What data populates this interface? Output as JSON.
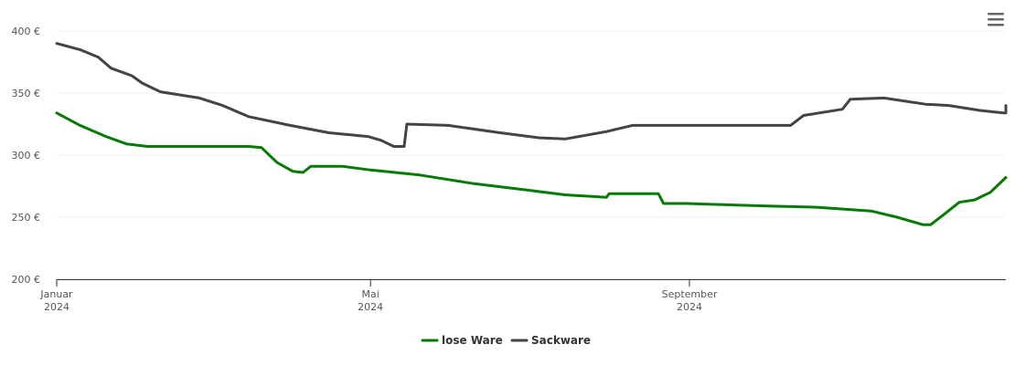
{
  "chart_data": {
    "type": "line",
    "title": "",
    "xlabel": "",
    "ylabel": "",
    "ylim": [
      200,
      400
    ],
    "y_ticks": [
      "200 €",
      "250 €",
      "300 €",
      "350 €",
      "400 €"
    ],
    "y_tick_values": [
      200,
      250,
      300,
      350,
      400
    ],
    "x_range": [
      "2024-01-01",
      "2025-01-01"
    ],
    "x_ticks": [
      {
        "date": "2024-01-01",
        "month": "Januar",
        "year": "2024"
      },
      {
        "date": "2024-05-01",
        "month": "Mai",
        "year": "2024"
      },
      {
        "date": "2024-09-01",
        "month": "September",
        "year": "2024"
      }
    ],
    "grid": "horizontal",
    "legend_position": "bottom-center",
    "series": [
      {
        "name": "lose Ware",
        "color": "#077a07",
        "points": [
          [
            "2024-01-01",
            334
          ],
          [
            "2024-01-10",
            324
          ],
          [
            "2024-01-20",
            315
          ],
          [
            "2024-01-28",
            309
          ],
          [
            "2024-02-05",
            307
          ],
          [
            "2024-02-15",
            307
          ],
          [
            "2024-03-01",
            307
          ],
          [
            "2024-03-15",
            307
          ],
          [
            "2024-03-20",
            306
          ],
          [
            "2024-03-26",
            294
          ],
          [
            "2024-04-01",
            287
          ],
          [
            "2024-04-05",
            286
          ],
          [
            "2024-04-08",
            291
          ],
          [
            "2024-04-20",
            291
          ],
          [
            "2024-05-01",
            288
          ],
          [
            "2024-05-20",
            284
          ],
          [
            "2024-06-10",
            277
          ],
          [
            "2024-06-30",
            272
          ],
          [
            "2024-07-15",
            268
          ],
          [
            "2024-07-31",
            266
          ],
          [
            "2024-08-01",
            269
          ],
          [
            "2024-08-20",
            269
          ],
          [
            "2024-08-22",
            261
          ],
          [
            "2024-08-31",
            261
          ],
          [
            "2024-09-15",
            260
          ],
          [
            "2024-10-01",
            259
          ],
          [
            "2024-10-20",
            258
          ],
          [
            "2024-11-10",
            255
          ],
          [
            "2024-11-20",
            250
          ],
          [
            "2024-11-30",
            244
          ],
          [
            "2024-12-03",
            244
          ],
          [
            "2024-12-08",
            252
          ],
          [
            "2024-12-14",
            262
          ],
          [
            "2024-12-20",
            264
          ],
          [
            "2024-12-26",
            270
          ],
          [
            "2025-01-01",
            282
          ]
        ]
      },
      {
        "name": "Sackware",
        "color": "#434348",
        "points": [
          [
            "2024-01-01",
            390
          ],
          [
            "2024-01-10",
            385
          ],
          [
            "2024-01-17",
            379
          ],
          [
            "2024-01-22",
            370
          ],
          [
            "2024-01-30",
            364
          ],
          [
            "2024-02-03",
            358
          ],
          [
            "2024-02-10",
            351
          ],
          [
            "2024-02-25",
            346
          ],
          [
            "2024-03-05",
            340
          ],
          [
            "2024-03-15",
            331
          ],
          [
            "2024-03-31",
            324
          ],
          [
            "2024-04-15",
            318
          ],
          [
            "2024-04-30",
            315
          ],
          [
            "2024-05-05",
            312
          ],
          [
            "2024-05-10",
            307
          ],
          [
            "2024-05-14",
            307
          ],
          [
            "2024-05-15",
            325
          ],
          [
            "2024-05-31",
            324
          ],
          [
            "2024-06-20",
            318
          ],
          [
            "2024-07-05",
            314
          ],
          [
            "2024-07-15",
            313
          ],
          [
            "2024-07-31",
            319
          ],
          [
            "2024-08-10",
            324
          ],
          [
            "2024-08-31",
            324
          ],
          [
            "2024-09-30",
            324
          ],
          [
            "2024-10-10",
            324
          ],
          [
            "2024-10-15",
            332
          ],
          [
            "2024-10-30",
            337
          ],
          [
            "2024-11-02",
            345
          ],
          [
            "2024-11-15",
            346
          ],
          [
            "2024-11-31",
            341
          ],
          [
            "2024-12-10",
            340
          ],
          [
            "2024-12-22",
            336
          ],
          [
            "2024-12-31",
            334
          ],
          [
            "2025-01-05",
            334
          ],
          [
            "2025-01-15",
            338
          ],
          [
            "2025-01-20",
            340
          ]
        ]
      }
    ]
  }
}
